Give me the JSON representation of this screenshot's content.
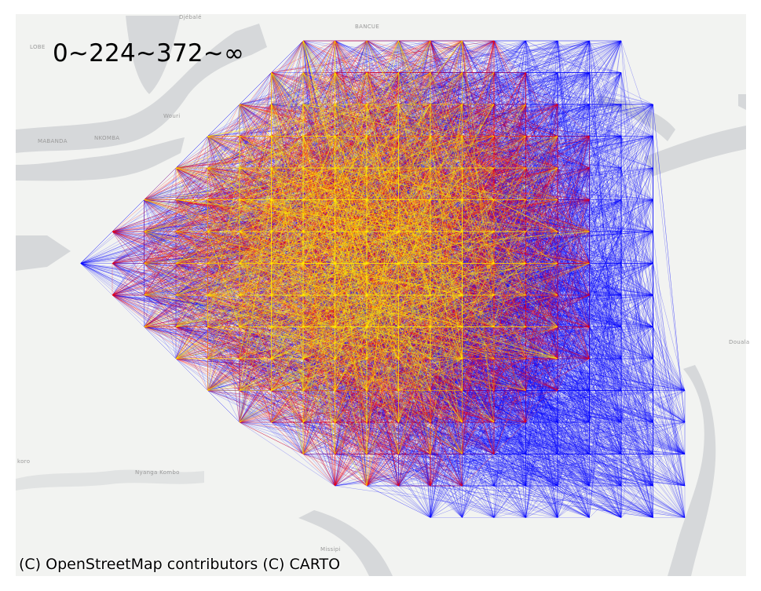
{
  "legend": {
    "text": "0~224~372~∞"
  },
  "attribution": "(C) OpenStreetMap contributors (C) CARTO",
  "place_labels": [
    "Djébalé",
    "BANCUE",
    "LOBE",
    "MABANDA",
    "NKOMBA",
    "Wouri",
    "Douala",
    "koro",
    "Nyanga Kombo",
    "Missipi"
  ],
  "colors": {
    "land": "#f2f3f1",
    "water": "#d6d8da",
    "band_low": "#ffee00",
    "band_mid": "#ff0000",
    "band_high": "#0000ff"
  },
  "flow_bands": [
    {
      "range": "0~224",
      "color": "#ffee00"
    },
    {
      "range": "224~372",
      "color": "#ff0000"
    },
    {
      "range": "372~∞",
      "color": "#0000ff"
    }
  ]
}
